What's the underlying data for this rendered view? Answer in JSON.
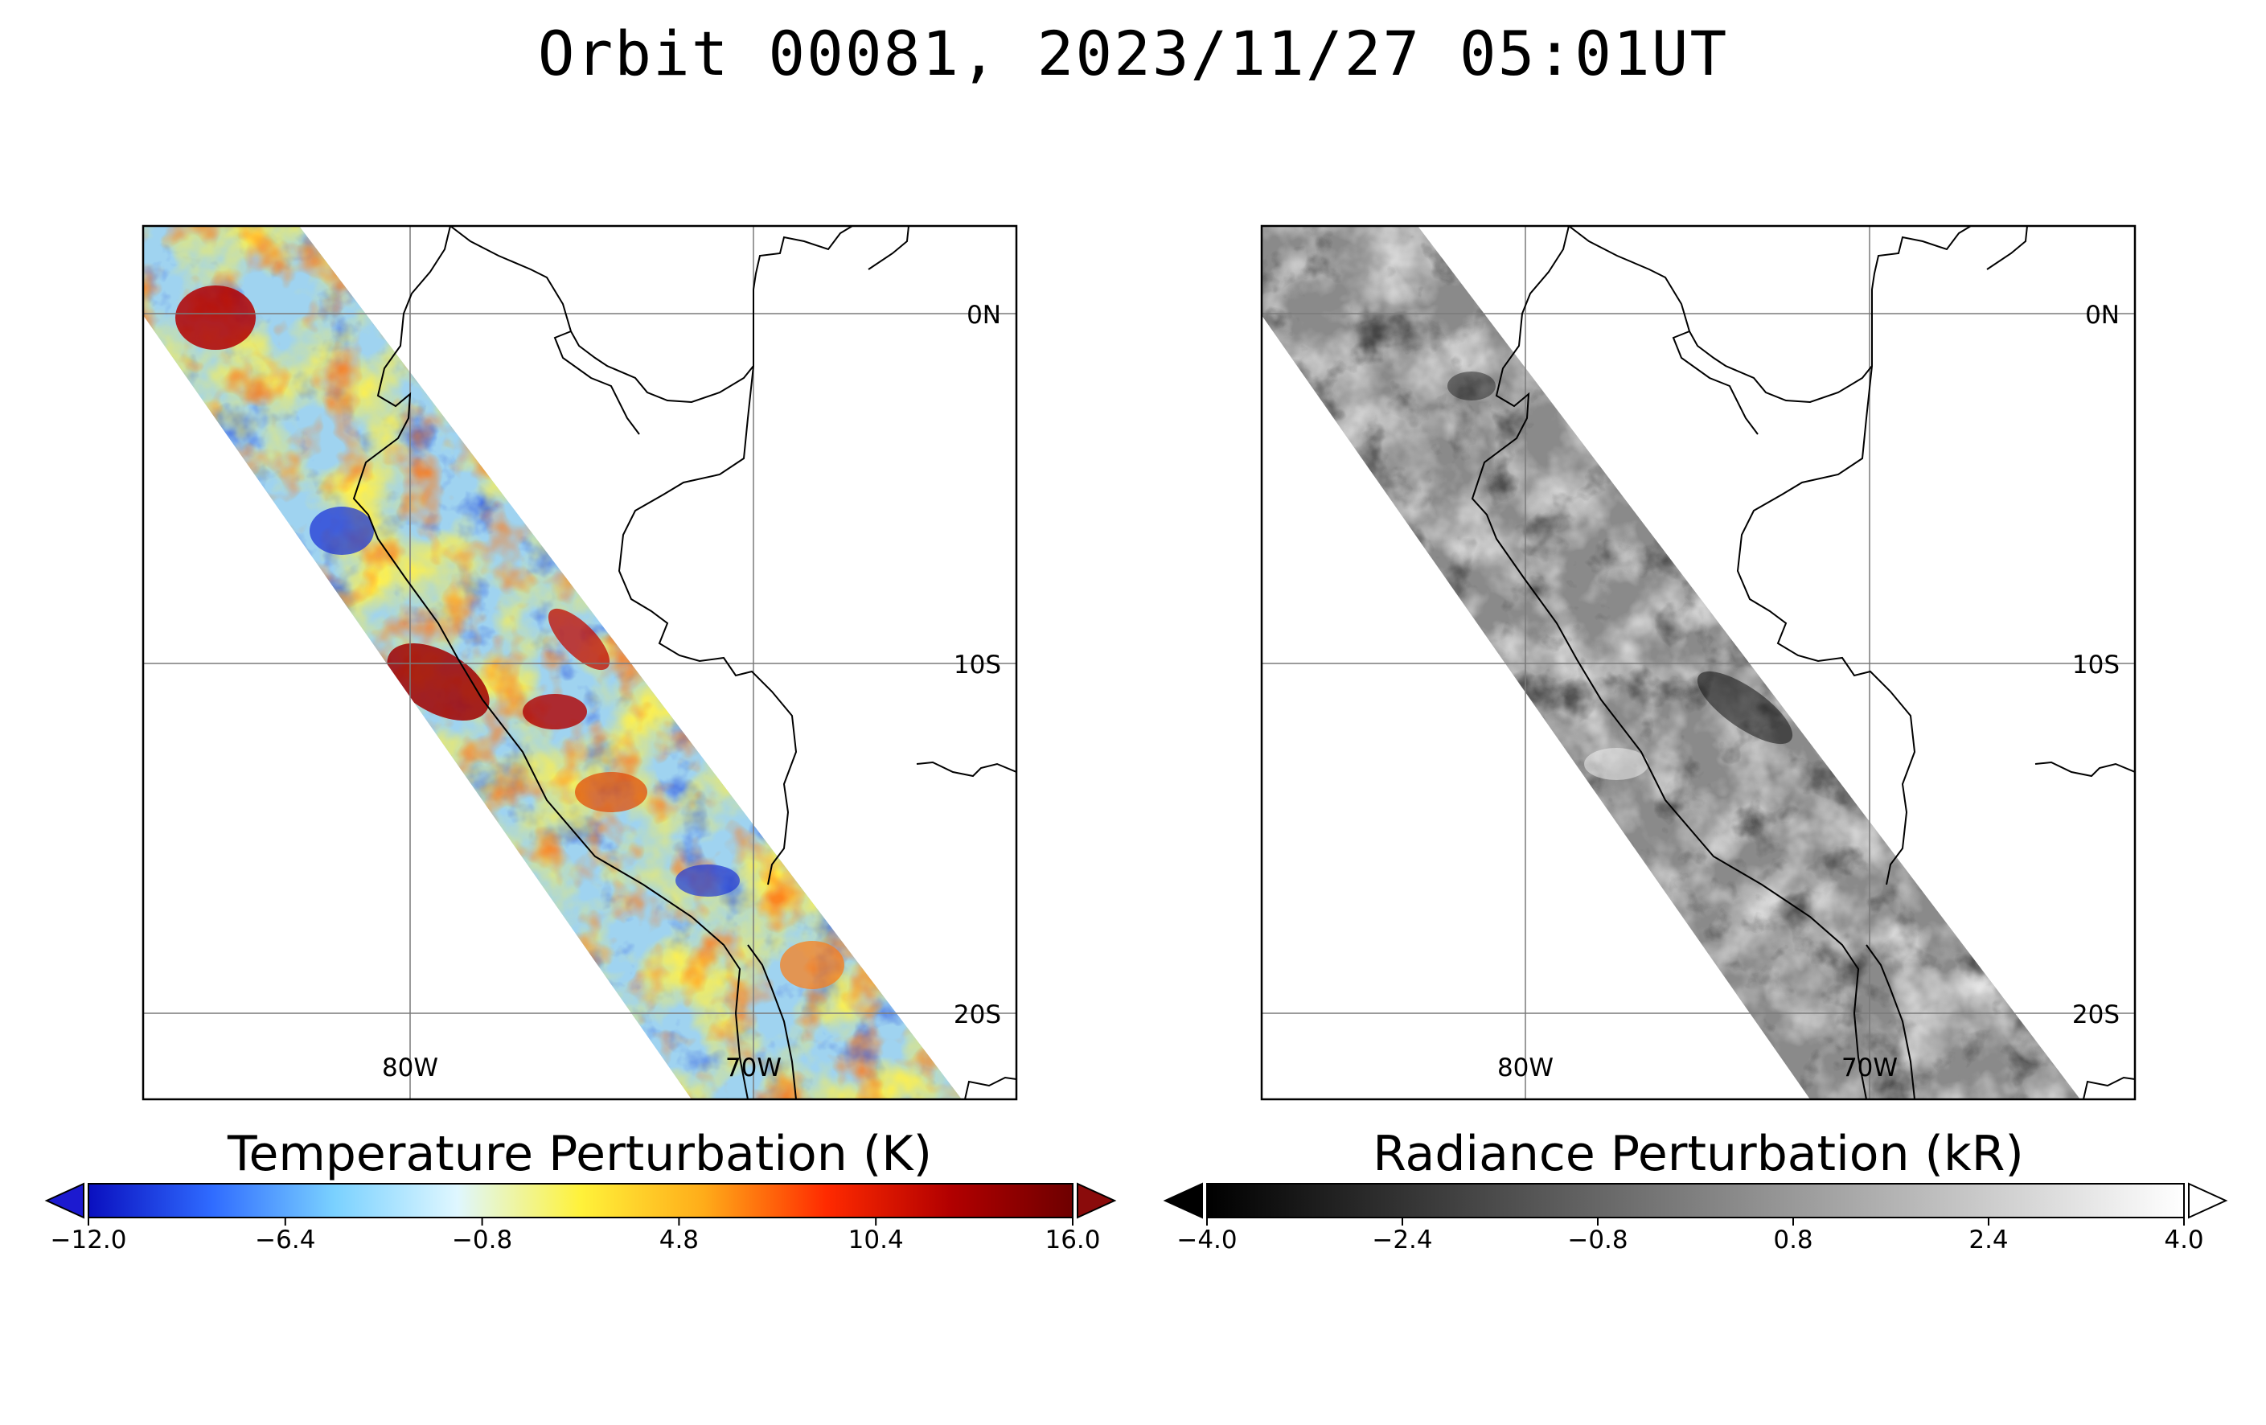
{
  "title": "Orbit 00081, 2023/11/27 05:01UT",
  "panels": [
    {
      "lat_labels": [
        "0N",
        "10S",
        "20S"
      ],
      "lon_labels": [
        "80W",
        "70W"
      ],
      "colorbar": {
        "label": "Temperature Perturbation (K)",
        "ticks": [
          "-12.0",
          "-6.4",
          "-0.8",
          "4.8",
          "10.4",
          "16.0"
        ],
        "range": [
          -12.0,
          16.0
        ],
        "colormap": [
          "#0a0fbf",
          "#2f6bff",
          "#7ad1ff",
          "#dff7ff",
          "#fff23a",
          "#ffac19",
          "#ff2a00",
          "#b20000",
          "#6e0000"
        ],
        "under_color": "#1c1ad0",
        "over_color": "#8a0b0b"
      }
    },
    {
      "lat_labels": [
        "0N",
        "10S",
        "20S"
      ],
      "lon_labels": [
        "80W",
        "70W"
      ],
      "colorbar": {
        "label": "Radiance Perturbation (kR)",
        "ticks": [
          "-4.0",
          "-2.4",
          "-0.8",
          "0.8",
          "2.4",
          "4.0"
        ],
        "range": [
          -4.0,
          4.0
        ],
        "colormap": [
          "#000000",
          "#ffffff"
        ],
        "under_color": "#000000",
        "over_color": "#ffffff"
      }
    }
  ]
}
